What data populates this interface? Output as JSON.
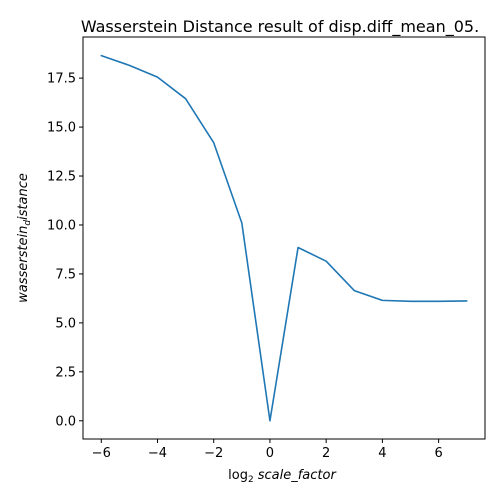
{
  "chart_data": {
    "type": "line",
    "title": "Wasserstein Distance result of disp.diff_mean_05.",
    "xlabel": "log₂ scale_factor",
    "xlabel_parts": {
      "base": "log",
      "sub": "2",
      "var": "scale_factor"
    },
    "ylabel": "wasserstein_distance",
    "ylabel_parts": {
      "main": "wasserstein",
      "sub": "d",
      "rest": "istance"
    },
    "x": [
      -6,
      -5,
      -4,
      -3,
      -2,
      -1,
      0,
      1,
      2,
      3,
      4,
      5,
      6,
      7
    ],
    "series": [
      {
        "values": [
          18.65,
          18.15,
          17.55,
          16.45,
          14.2,
          10.1,
          0.0,
          8.85,
          8.15,
          6.65,
          6.15,
          6.1,
          6.1,
          6.12
        ],
        "color": "#1f77b4"
      }
    ],
    "xlim": [
      -6.65,
      7.65
    ],
    "ylim": [
      -0.93,
      19.6
    ],
    "x_ticks": [
      -6,
      -4,
      -2,
      0,
      2,
      4,
      6
    ],
    "x_tick_labels": [
      "−6",
      "−4",
      "−2",
      "0",
      "2",
      "4",
      "6"
    ],
    "y_ticks": [
      0,
      2.5,
      5,
      7.5,
      10,
      12.5,
      15,
      17.5
    ],
    "y_tick_labels": [
      "0.0",
      "2.5",
      "5.0",
      "7.5",
      "10.0",
      "12.5",
      "15.0",
      "17.5"
    ],
    "grid": false,
    "legend": "none"
  }
}
